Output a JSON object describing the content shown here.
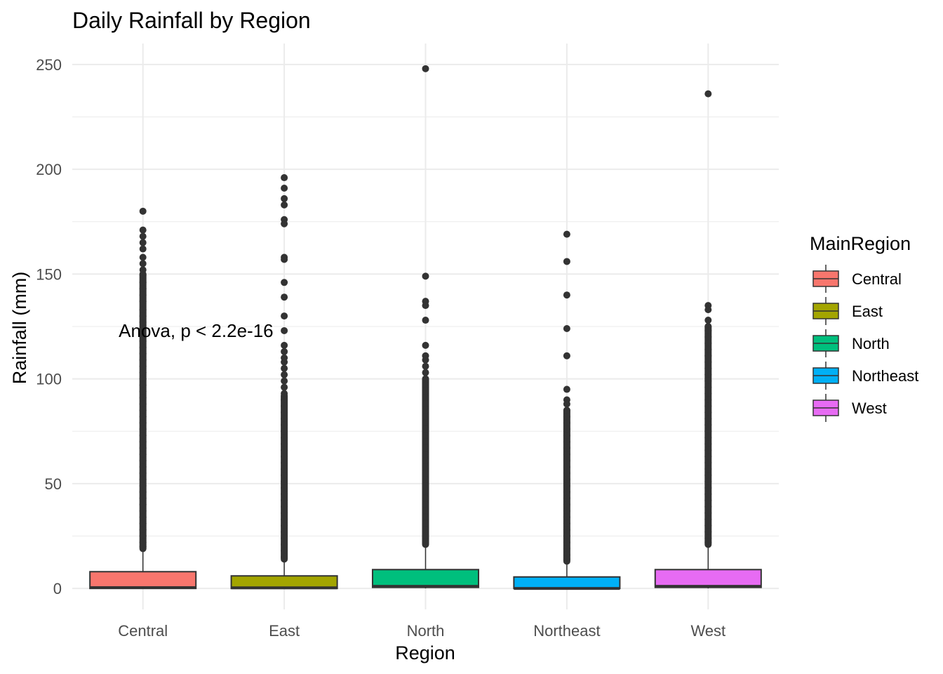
{
  "chart_data": {
    "type": "boxplot",
    "title": "Daily Rainfall by Region",
    "xlabel": "Region",
    "ylabel": "Rainfall (mm)",
    "ylim": [
      -10,
      260
    ],
    "yticks": [
      0,
      50,
      100,
      150,
      200,
      250
    ],
    "grid": true,
    "legend": {
      "title": "MainRegion",
      "placement": "right",
      "entries": [
        "Central",
        "East",
        "North",
        "Northeast",
        "West"
      ]
    },
    "annotation": {
      "text": "Anova, p < 2.2e-16",
      "x": "East",
      "y": 123
    },
    "categories": [
      "Central",
      "East",
      "North",
      "Northeast",
      "West"
    ],
    "series": [
      {
        "category": "Central",
        "color": "#F8766D",
        "q1": 0,
        "median": 0.4,
        "q3": 8,
        "whisker_low": 0,
        "whisker_high": 19,
        "outliers": [
          180,
          171,
          168,
          165,
          162,
          158,
          155,
          152,
          149.6,
          146,
          143,
          140,
          137,
          133,
          130,
          127,
          124,
          121,
          118,
          115,
          112,
          109,
          106,
          103,
          100,
          97,
          94,
          91,
          88,
          85,
          82,
          79,
          76,
          73,
          70,
          67,
          64,
          61,
          58,
          55,
          52,
          49,
          46,
          43,
          40,
          37,
          34,
          31,
          28,
          25,
          22,
          20
        ],
        "outliers_dense_range": [
          19,
          150
        ]
      },
      {
        "category": "East",
        "color": "#A3A500",
        "q1": 0,
        "median": 0.3,
        "q3": 6,
        "whisker_low": 0,
        "whisker_high": 14,
        "outliers": [
          196,
          191,
          186,
          183,
          176,
          174,
          158,
          157,
          146,
          139,
          130,
          123,
          116,
          113,
          110,
          108,
          105,
          102,
          99,
          96,
          93,
          90,
          87,
          84,
          81,
          78,
          75,
          72,
          69,
          66,
          63,
          60,
          57,
          54,
          51,
          48,
          45,
          42,
          39,
          36,
          33,
          30,
          27,
          24,
          21,
          18,
          15
        ],
        "outliers_dense_range": [
          14,
          92
        ]
      },
      {
        "category": "North",
        "color": "#00BF7D",
        "q1": 0.5,
        "median": 1,
        "q3": 9,
        "whisker_low": 0,
        "whisker_high": 21,
        "outliers": [
          248,
          149,
          137,
          135,
          128,
          116,
          111,
          109,
          106,
          103,
          100,
          97,
          94,
          91,
          88,
          85,
          82,
          79,
          76,
          73,
          70,
          67,
          64,
          61,
          58,
          55,
          52,
          49,
          46,
          43,
          40,
          37,
          34,
          31,
          28,
          25,
          22
        ],
        "outliers_dense_range": [
          21,
          100
        ]
      },
      {
        "category": "Northeast",
        "color": "#00B0F6",
        "q1": 0,
        "median": 0,
        "q3": 5.5,
        "whisker_low": 0,
        "whisker_high": 13,
        "outliers": [
          169,
          156,
          140,
          124,
          111,
          95,
          90,
          88,
          85,
          82,
          79,
          76,
          73,
          70,
          67,
          64,
          61,
          58,
          55,
          52,
          49,
          46,
          43,
          40,
          37,
          34,
          31,
          28,
          25,
          22,
          19,
          16,
          14
        ],
        "outliers_dense_range": [
          13,
          85
        ]
      },
      {
        "category": "West",
        "color": "#E76BF3",
        "q1": 0.5,
        "median": 1,
        "q3": 9,
        "whisker_low": 0,
        "whisker_high": 21,
        "outliers": [
          236,
          135,
          133,
          128,
          125,
          123,
          120,
          117,
          114,
          111,
          108,
          105,
          102,
          99,
          96,
          93,
          90,
          87,
          84,
          81,
          78,
          75,
          72,
          69,
          66,
          63,
          60,
          57,
          54,
          51,
          48,
          45,
          42,
          39,
          36,
          33,
          30,
          27,
          24,
          22
        ],
        "outliers_dense_range": [
          21,
          125
        ]
      }
    ]
  }
}
